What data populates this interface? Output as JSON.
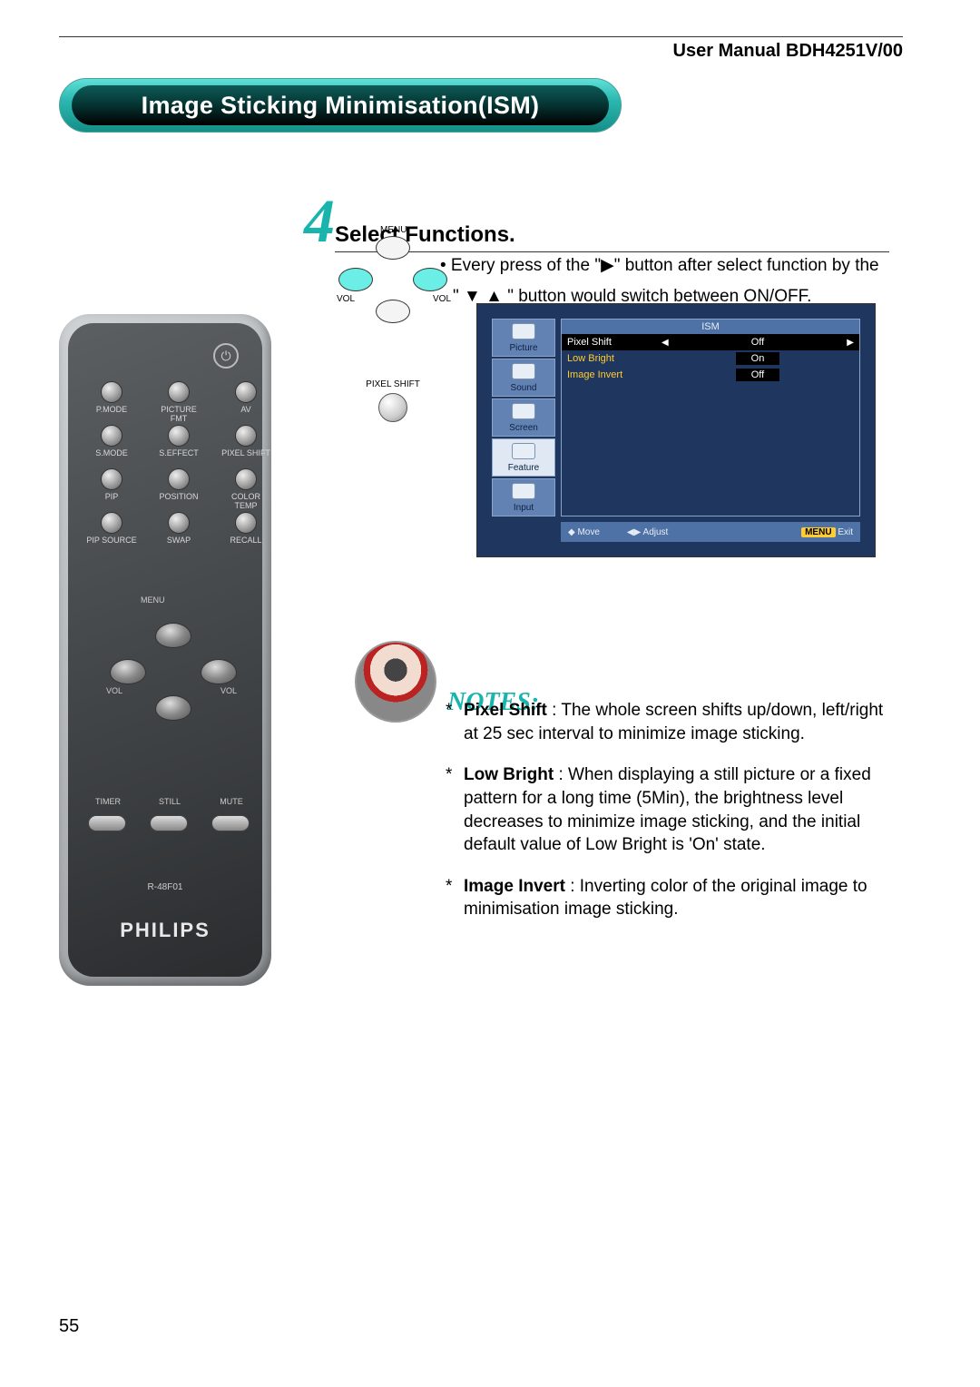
{
  "header": {
    "manual_title": "User Manual BDH4251V/00"
  },
  "page_title": "Image Sticking Minimisation(ISM)",
  "step": {
    "number": "4",
    "title": "Select Functions.",
    "instruction_line1": "• Every press of the \"▶\" button after select function by the",
    "instruction_line2": "\" ▼  ▲ \" button would switch between ON/OFF."
  },
  "small_dpad": {
    "menu": "MENU",
    "vol_left": "VOL",
    "vol_right": "VOL",
    "pixel_shift_label": "PIXEL SHIFT"
  },
  "osd": {
    "title": "ISM",
    "tabs": [
      "Picture",
      "Sound",
      "Screen",
      "Feature",
      "Input"
    ],
    "rows": [
      {
        "label": "Pixel Shift",
        "value": "Off",
        "selected": true
      },
      {
        "label": "Low Bright",
        "value": "On",
        "selected": false
      },
      {
        "label": "Image Invert",
        "value": "Off",
        "selected": false
      }
    ],
    "footer": {
      "move": "Move",
      "adjust": "Adjust",
      "menu_key": "MENU",
      "exit": "Exit"
    },
    "colors": {
      "bg": "#1f365e",
      "panel": "#4f72a6",
      "tab": "#6282b3",
      "tab_selected": "#dfe8f3",
      "label_color": "#ffcc33"
    }
  },
  "notes": {
    "heading": "NOTES:",
    "items": [
      {
        "term": "Pixel Shift",
        "desc": ": The whole screen shifts up/down, left/right at 25 sec interval to minimize image sticking."
      },
      {
        "term": "Low Bright",
        "desc": ": When displaying a still picture or a fixed pattern for a long time (5Min), the brightness level decreases to minimize image sticking, and the initial default value of Low Bright is 'On' state."
      },
      {
        "term": "Image Invert",
        "desc": ": Inverting color of the original image to minimisation image sticking."
      }
    ]
  },
  "remote": {
    "brand": "PHILIPS",
    "model": "R-48F01",
    "grid_labels": [
      [
        "P.MODE",
        "PICTURE FMT",
        "AV"
      ],
      [
        "S.MODE",
        "S.EFFECT",
        "PIXEL SHIFT"
      ],
      [
        "PIP",
        "POSITION",
        "COLOR TEMP"
      ],
      [
        "PIP SOURCE",
        "SWAP",
        "RECALL"
      ]
    ],
    "dpad": {
      "menu": "MENU",
      "vol_l": "VOL",
      "vol_r": "VOL"
    },
    "bottom_row": [
      "TIMER",
      "STILL",
      "MUTE"
    ]
  },
  "page_number": "55"
}
